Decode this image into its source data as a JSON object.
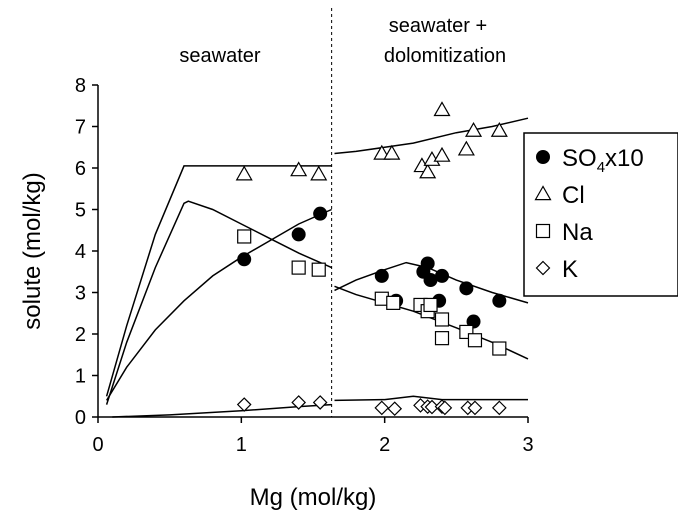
{
  "chart_data": {
    "type": "scatter",
    "xlabel": "Mg (mol/kg)",
    "ylabel": "solute (mol/kg)",
    "xlim": [
      0,
      3
    ],
    "ylim": [
      0,
      8
    ],
    "xticks": [
      "0",
      "1",
      "2",
      "3"
    ],
    "yticks": [
      "0",
      "1",
      "2",
      "3",
      "4",
      "5",
      "6",
      "7",
      "8"
    ],
    "divider_x": 1.63,
    "regions": [
      {
        "label": "seawater"
      },
      {
        "label": "seawater +",
        "label2": "dolomitization"
      }
    ],
    "legend": {
      "position": "right",
      "entries": [
        {
          "marker": "filled-circle",
          "text": "SO",
          "sub": "4",
          "suffix": "x10"
        },
        {
          "marker": "open-triangle",
          "text": "Cl"
        },
        {
          "marker": "open-square",
          "text": "Na"
        },
        {
          "marker": "open-diamond",
          "text": "K"
        }
      ]
    },
    "series": [
      {
        "name": "SO4x10",
        "marker": "filled-circle",
        "points": [
          [
            1.02,
            3.8
          ],
          [
            1.4,
            4.4
          ],
          [
            1.55,
            4.9
          ],
          [
            1.98,
            3.4
          ],
          [
            2.08,
            2.8
          ],
          [
            2.27,
            3.5
          ],
          [
            2.3,
            3.7
          ],
          [
            2.32,
            3.3
          ],
          [
            2.4,
            3.4
          ],
          [
            2.38,
            2.8
          ],
          [
            2.57,
            3.1
          ],
          [
            2.62,
            2.3
          ],
          [
            2.8,
            2.8
          ]
        ],
        "model_segments": [
          [
            [
              0.06,
              0.4
            ],
            [
              0.2,
              1.2
            ],
            [
              0.4,
              2.1
            ],
            [
              0.6,
              2.8
            ],
            [
              0.8,
              3.4
            ],
            [
              1.0,
              3.85
            ],
            [
              1.2,
              4.25
            ],
            [
              1.4,
              4.65
            ],
            [
              1.63,
              5.0
            ]
          ],
          [
            [
              1.65,
              3.05
            ],
            [
              1.8,
              3.3
            ],
            [
              2.0,
              3.55
            ],
            [
              2.15,
              3.72
            ],
            [
              2.3,
              3.6
            ],
            [
              2.5,
              3.3
            ],
            [
              2.75,
              3.0
            ],
            [
              3.0,
              2.75
            ]
          ]
        ]
      },
      {
        "name": "Cl",
        "marker": "open-triangle",
        "points": [
          [
            1.02,
            5.85
          ],
          [
            1.4,
            5.95
          ],
          [
            1.54,
            5.85
          ],
          [
            1.98,
            6.35
          ],
          [
            2.05,
            6.35
          ],
          [
            2.26,
            6.05
          ],
          [
            2.3,
            5.9
          ],
          [
            2.33,
            6.2
          ],
          [
            2.4,
            6.3
          ],
          [
            2.4,
            7.4
          ],
          [
            2.57,
            6.45
          ],
          [
            2.62,
            6.9
          ],
          [
            2.8,
            6.9
          ]
        ],
        "model_segments": [
          [
            [
              0.06,
              0.5
            ],
            [
              0.2,
              2.2
            ],
            [
              0.4,
              4.4
            ],
            [
              0.6,
              6.05
            ],
            [
              0.65,
              6.05
            ],
            [
              1.63,
              6.05
            ]
          ],
          [
            [
              1.65,
              6.35
            ],
            [
              1.8,
              6.4
            ],
            [
              2.0,
              6.5
            ],
            [
              2.2,
              6.6
            ],
            [
              2.5,
              6.85
            ],
            [
              2.75,
              7.0
            ],
            [
              3.0,
              7.2
            ]
          ]
        ]
      },
      {
        "name": "Na",
        "marker": "open-square",
        "points": [
          [
            1.02,
            4.35
          ],
          [
            1.4,
            3.6
          ],
          [
            1.54,
            3.55
          ],
          [
            1.98,
            2.85
          ],
          [
            2.06,
            2.75
          ],
          [
            2.25,
            2.7
          ],
          [
            2.3,
            2.55
          ],
          [
            2.32,
            2.7
          ],
          [
            2.4,
            2.35
          ],
          [
            2.4,
            1.9
          ],
          [
            2.57,
            2.05
          ],
          [
            2.63,
            1.85
          ],
          [
            2.8,
            1.65
          ]
        ],
        "model_segments": [
          [
            [
              0.06,
              0.3
            ],
            [
              0.2,
              1.8
            ],
            [
              0.4,
              3.6
            ],
            [
              0.6,
              5.15
            ],
            [
              0.63,
              5.2
            ],
            [
              0.8,
              5.0
            ],
            [
              1.0,
              4.65
            ],
            [
              1.2,
              4.3
            ],
            [
              1.4,
              3.95
            ],
            [
              1.63,
              3.6
            ]
          ],
          [
            [
              1.65,
              3.15
            ],
            [
              1.8,
              2.95
            ],
            [
              2.0,
              2.75
            ],
            [
              2.2,
              2.55
            ],
            [
              2.5,
              2.15
            ],
            [
              2.75,
              1.8
            ],
            [
              3.0,
              1.4
            ]
          ]
        ]
      },
      {
        "name": "K",
        "marker": "open-diamond",
        "points": [
          [
            1.02,
            0.3
          ],
          [
            1.4,
            0.35
          ],
          [
            1.55,
            0.35
          ],
          [
            1.98,
            0.22
          ],
          [
            2.07,
            0.2
          ],
          [
            2.25,
            0.28
          ],
          [
            2.3,
            0.25
          ],
          [
            2.33,
            0.24
          ],
          [
            2.4,
            0.25
          ],
          [
            2.42,
            0.22
          ],
          [
            2.58,
            0.22
          ],
          [
            2.63,
            0.22
          ],
          [
            2.8,
            0.22
          ]
        ],
        "model_segments": [
          [
            [
              0.1,
              0.0
            ],
            [
              0.5,
              0.05
            ],
            [
              1.0,
              0.15
            ],
            [
              1.4,
              0.25
            ],
            [
              1.63,
              0.3
            ]
          ],
          [
            [
              1.65,
              0.4
            ],
            [
              2.0,
              0.42
            ],
            [
              2.2,
              0.5
            ],
            [
              2.4,
              0.42
            ],
            [
              3.0,
              0.42
            ]
          ]
        ]
      }
    ]
  }
}
